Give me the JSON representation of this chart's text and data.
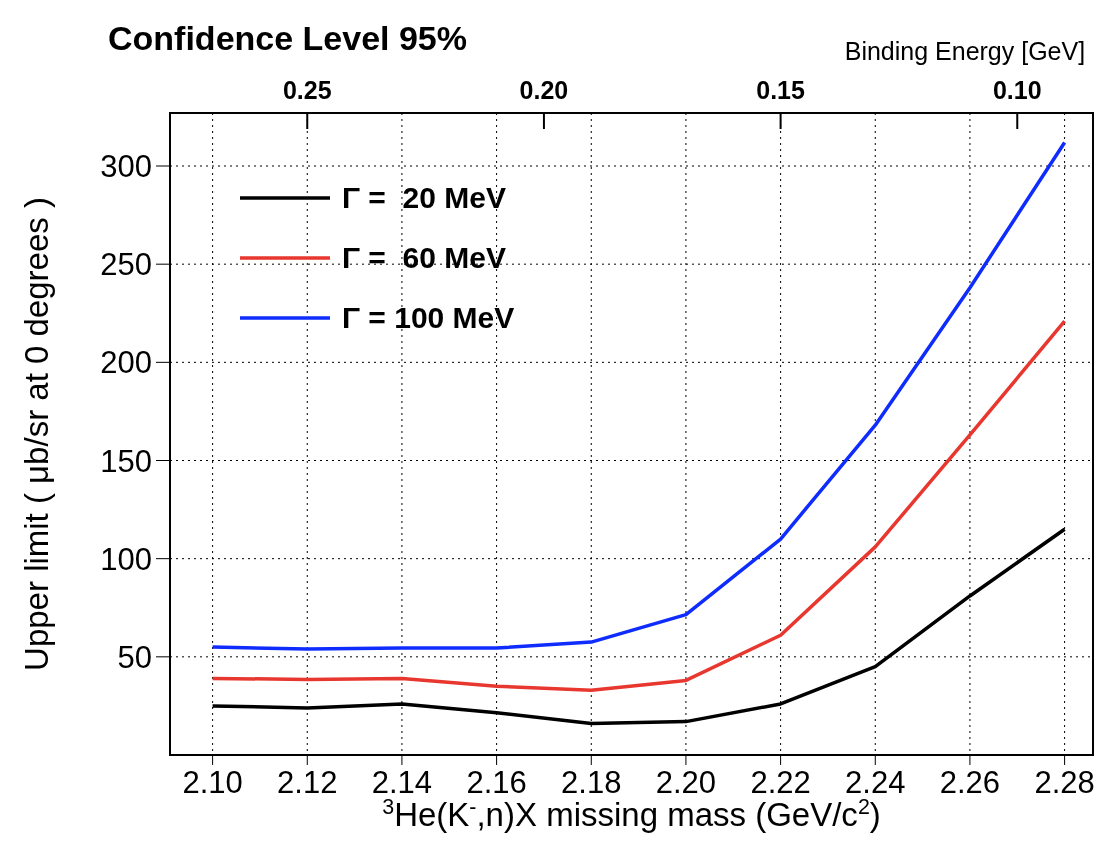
{
  "chart_data": {
    "type": "line",
    "title": "Confidence Level 95%",
    "xlabel": "$^{3}$He(K$^{-}$,n)X missing mass (GeV/c$^{2}$)",
    "ylabel": "Upper limit ( μb/sr at 0 degrees )",
    "x2label": "Binding Energy [GeV]",
    "x": [
      2.1,
      2.12,
      2.14,
      2.16,
      2.18,
      2.2,
      2.22,
      2.24,
      2.26,
      2.28
    ],
    "series": [
      {
        "name": "Γ =  20 MeV",
        "color": "#000000",
        "values": [
          25,
          24,
          26,
          21.5,
          16,
          17,
          26,
          45,
          81,
          115
        ]
      },
      {
        "name": "Γ =  60 MeV",
        "color": "#e8372e",
        "values": [
          39,
          38.5,
          39,
          35,
          33,
          38,
          61,
          106,
          163,
          221
        ]
      },
      {
        "name": "Γ = 100 MeV",
        "color": "#0f2cff",
        "values": [
          55,
          54,
          54.5,
          54.5,
          57.5,
          71.5,
          110,
          168,
          238,
          312
        ]
      }
    ],
    "xlim": [
      2.091,
      2.286
    ],
    "xticks": [
      {
        "value": 2.1,
        "label": "2.10"
      },
      2.12,
      2.14,
      2.16,
      2.18,
      {
        "value": 2.2,
        "label": "2.20"
      },
      2.22,
      2.24,
      2.26,
      2.28
    ],
    "ylim": [
      0,
      327
    ],
    "yticks": [
      50,
      100,
      150,
      200,
      250,
      300
    ],
    "x2lim": [
      0.279,
      0.084
    ],
    "x2ticks": [
      0.25,
      {
        "value": 0.2,
        "label": "0.20"
      },
      0.15,
      {
        "value": 0.1,
        "label": "0.10"
      }
    ],
    "grid": true,
    "legend": "top left",
    "marker": "none",
    "line_style": "solid"
  }
}
